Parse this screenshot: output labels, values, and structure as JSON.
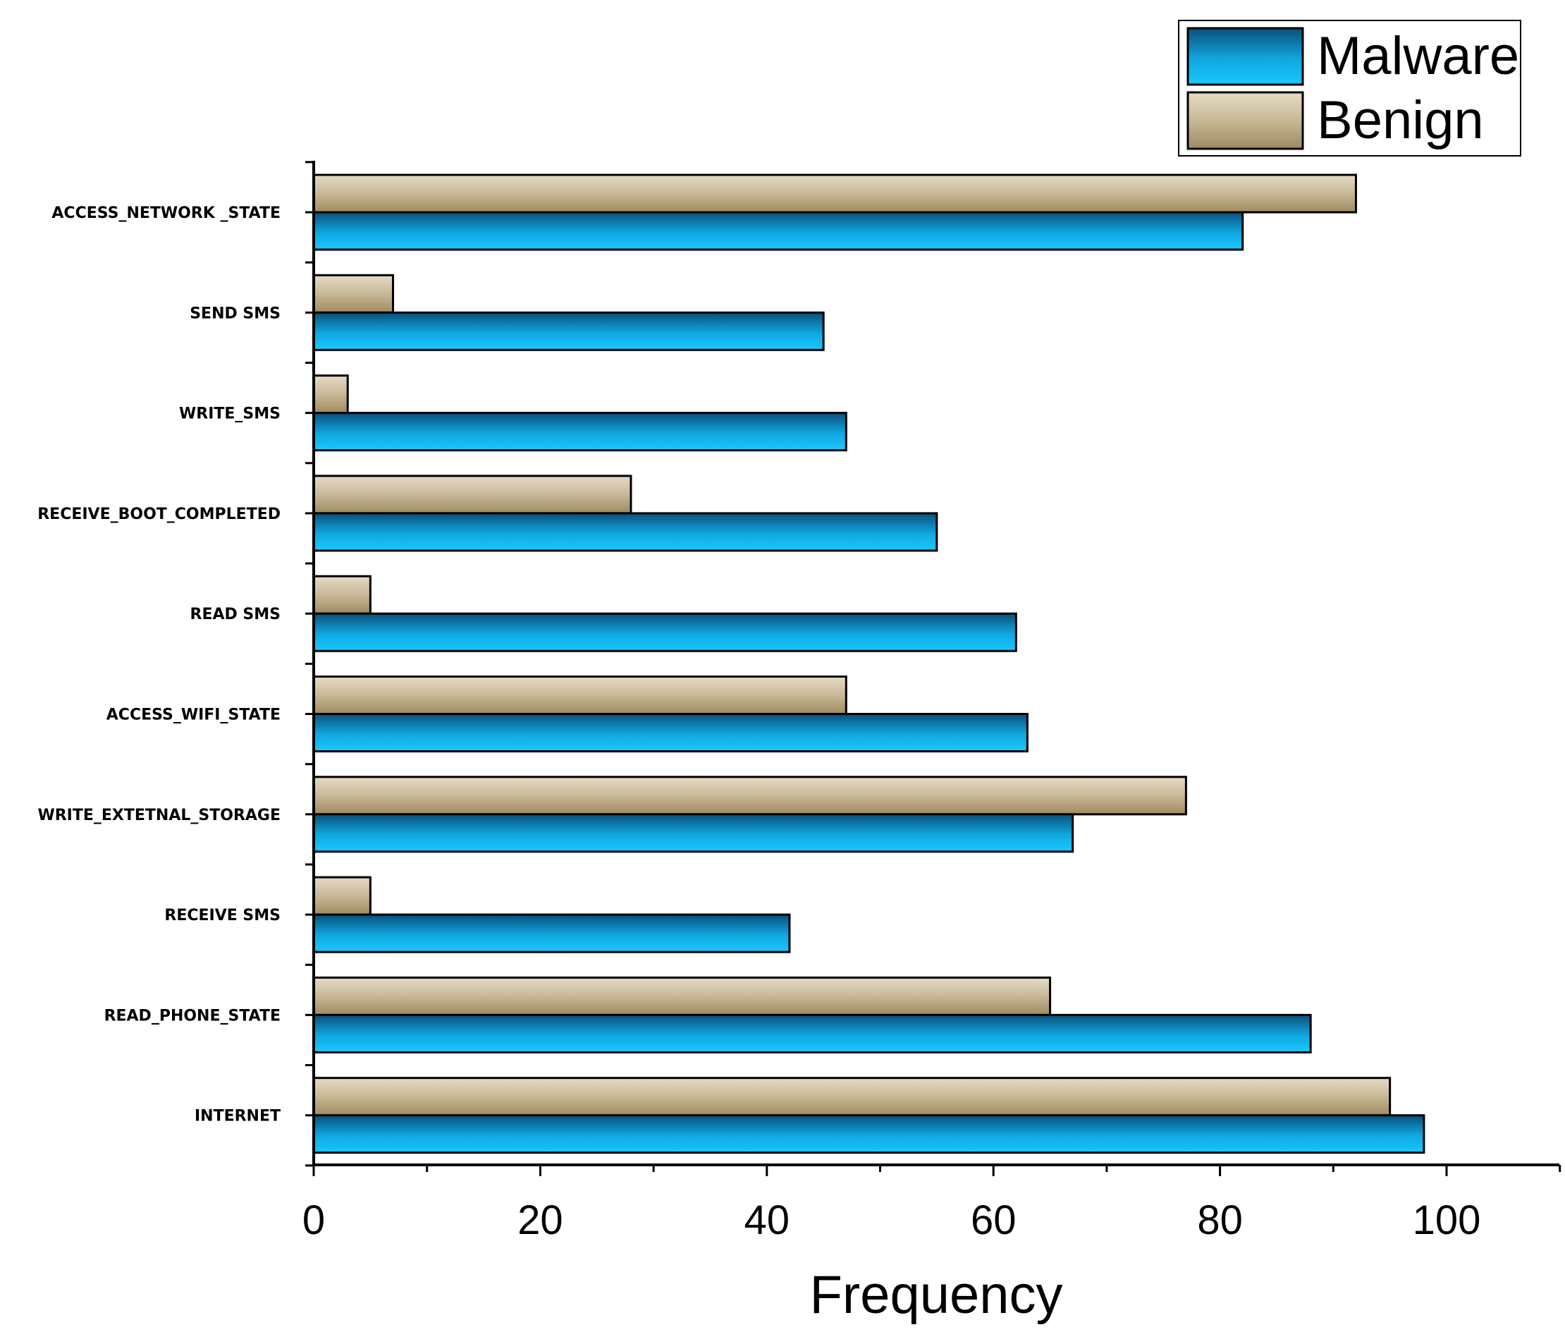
{
  "chart_data": {
    "type": "bar",
    "orientation": "horizontal",
    "title": "",
    "xlabel": "Frequency",
    "ylabel": "",
    "xlim": [
      0,
      110
    ],
    "xticks": [
      0,
      20,
      40,
      60,
      80,
      100
    ],
    "categories": [
      "ACCESS_NETWORK _STATE",
      "SEND SMS",
      "WRITE_SMS",
      "RECEIVE_BOOT_COMPLETED",
      "READ SMS",
      "ACCESS_WIFI_STATE",
      "WRITE_EXTETNAL_STORAGE",
      "RECEIVE SMS",
      "READ_PHONE_STATE",
      "INTERNET"
    ],
    "series": [
      {
        "name": "Malware",
        "values": [
          82,
          45,
          47,
          55,
          62,
          63,
          67,
          42,
          88,
          98
        ]
      },
      {
        "name": "Benign",
        "values": [
          92,
          7,
          3,
          28,
          5,
          47,
          77,
          5,
          65,
          95
        ]
      }
    ],
    "legend": {
      "position": "top-right",
      "entries": [
        "Malware",
        "Benign"
      ]
    },
    "colors": {
      "malware_dark": "#0a4f7a",
      "malware_light": "#19c4ff",
      "benign_dark": "#a08a60",
      "benign_light": "#e6dbc6"
    },
    "grid": false
  }
}
